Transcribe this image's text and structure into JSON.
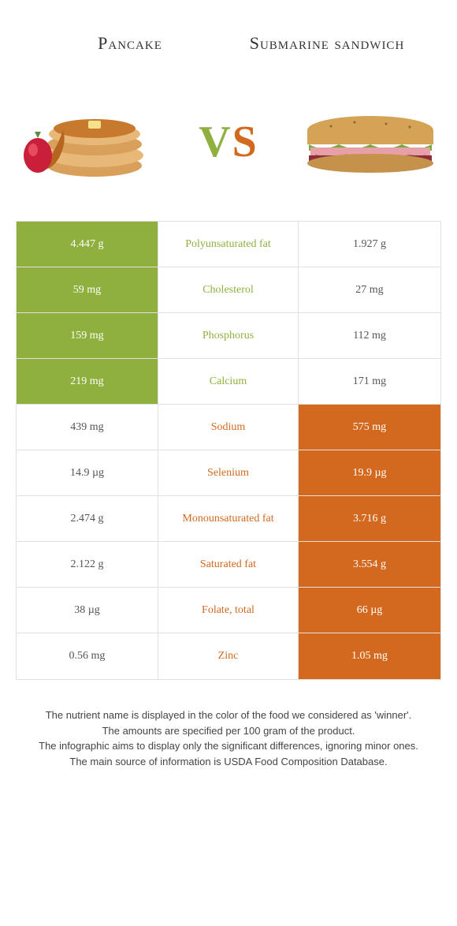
{
  "foodA": {
    "name": "Pancake",
    "color": "#8fb03e"
  },
  "foodB": {
    "name": "Submarine sandwich",
    "color": "#d2691e"
  },
  "vs": "VS",
  "rows": [
    {
      "nutrient": "Polyunsaturated fat",
      "a": "4.447 g",
      "b": "1.927 g",
      "winner": "a"
    },
    {
      "nutrient": "Cholesterol",
      "a": "59 mg",
      "b": "27 mg",
      "winner": "a"
    },
    {
      "nutrient": "Phosphorus",
      "a": "159 mg",
      "b": "112 mg",
      "winner": "a"
    },
    {
      "nutrient": "Calcium",
      "a": "219 mg",
      "b": "171 mg",
      "winner": "a"
    },
    {
      "nutrient": "Sodium",
      "a": "439 mg",
      "b": "575 mg",
      "winner": "b"
    },
    {
      "nutrient": "Selenium",
      "a": "14.9 µg",
      "b": "19.9 µg",
      "winner": "b"
    },
    {
      "nutrient": "Monounsaturated fat",
      "a": "2.474 g",
      "b": "3.716 g",
      "winner": "b"
    },
    {
      "nutrient": "Saturated fat",
      "a": "2.122 g",
      "b": "3.554 g",
      "winner": "b"
    },
    {
      "nutrient": "Folate, total",
      "a": "38 µg",
      "b": "66 µg",
      "winner": "b"
    },
    {
      "nutrient": "Zinc",
      "a": "0.56 mg",
      "b": "1.05 mg",
      "winner": "b"
    }
  ],
  "footer": {
    "l1": "The nutrient name is displayed in the color of the food we considered as 'winner'.",
    "l2": "The amounts are specified per 100 gram of the product.",
    "l3": "The infographic aims to display only the significant differences, ignoring minor ones.",
    "l4": "The main source of information is USDA Food Composition Database."
  },
  "colors": {
    "green": "#8fb03e",
    "orange": "#d2691e",
    "border": "#e0e0e0",
    "text": "#333333",
    "bg": "#ffffff"
  }
}
